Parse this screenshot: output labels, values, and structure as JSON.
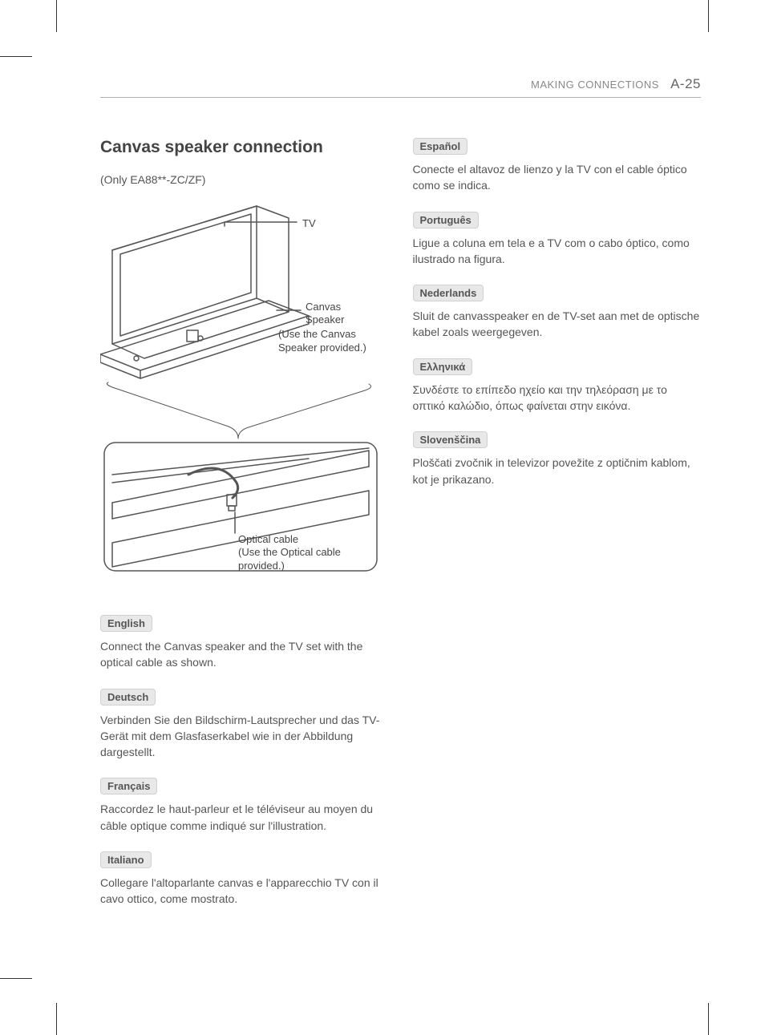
{
  "header": {
    "section": "MAKING CONNECTIONS",
    "page_number": "A-25"
  },
  "title": "Canvas speaker connection",
  "subtitle": "(Only EA88**-ZC/ZF)",
  "diagram": {
    "label_tv": "TV",
    "label_speaker_1": "Canvas",
    "label_speaker_2": "Speaker",
    "label_speaker_note": "(Use the Canvas Speaker provided.)",
    "label_cable_1": "Optical cable",
    "label_cable_2": "(Use the Optical cable provided.)",
    "stroke_color": "#555555",
    "stroke_width_main": 1.5,
    "stroke_width_group": 2,
    "background": "#ffffff"
  },
  "left_column": [
    {
      "lang": "English",
      "text": "Connect the Canvas speaker and the TV set with the optical cable as shown."
    },
    {
      "lang": "Deutsch",
      "text": "Verbinden Sie den Bildschirm-Lautsprecher und das TV-Gerät mit dem Glasfaserkabel wie in der Abbildung dargestellt."
    },
    {
      "lang": "Français",
      "text": "Raccordez le haut-parleur et le téléviseur au moyen du câble optique comme indiqué sur l'illustration."
    },
    {
      "lang": "Italiano",
      "text": "Collegare l'altoparlante canvas e l'apparecchio TV con il cavo ottico, come mostrato."
    }
  ],
  "right_column": [
    {
      "lang": "Español",
      "text": "Conecte el altavoz de lienzo y la TV con el cable óptico como se indica."
    },
    {
      "lang": "Português",
      "text": "Ligue a coluna em tela e a TV com o cabo óptico, como ilustrado na figura."
    },
    {
      "lang": "Nederlands",
      "text": "Sluit de canvasspeaker en de TV-set aan met de optische kabel zoals weergegeven."
    },
    {
      "lang": "Ελληνικά",
      "text": "Συνδέστε το επίπεδο ηχείο και την τηλεόραση με το οπτικό καλώδιο, όπως φαίνεται στην εικόνα."
    },
    {
      "lang": "Slovenščina",
      "text": "Ploščati zvočnik in televizor povežite z optičnim kablom, kot je prikazano."
    }
  ],
  "colors": {
    "text_primary": "#4a4a4a",
    "text_secondary": "#888888",
    "badge_bg": "#e8e8e8",
    "badge_border": "#d0d0d0",
    "rule": "#b0b0b0"
  },
  "typography": {
    "title_fontsize": 21,
    "body_fontsize": 14,
    "label_fontsize": 13,
    "header_fontsize": 13,
    "pagenum_fontsize": 17
  }
}
